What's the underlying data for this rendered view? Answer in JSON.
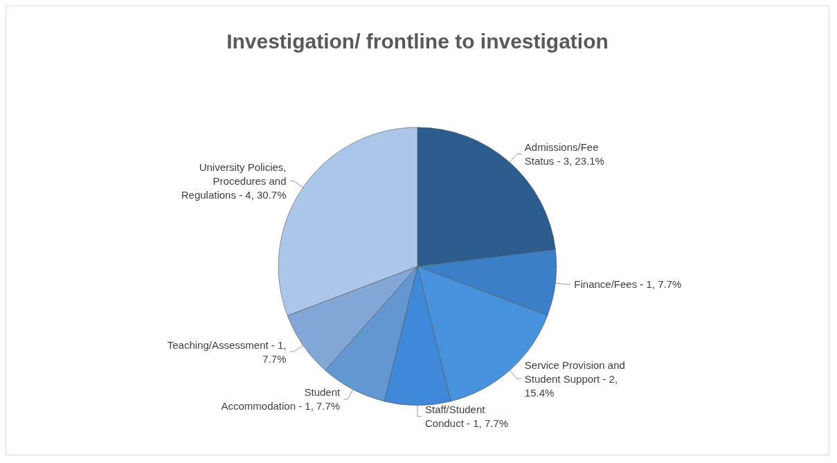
{
  "chart_data": {
    "type": "pie",
    "title": "Investigation/ frontline to investigation",
    "categories": [
      "Admissions/Fee Status",
      "Finance/Fees",
      "Service Provision and Student Support",
      "Staff/Student Conduct",
      "Student Accommodation",
      "Teaching/Assessment",
      "University Policies, Procedures and Regulations"
    ],
    "values": [
      3,
      1,
      2,
      1,
      1,
      1,
      4
    ],
    "value_labels": [
      "3, 23.1%",
      "1, 7.7%",
      "2, 15.4%",
      "1, 7.7%",
      "1, 7.7%",
      "1, 7.7%",
      "4, 30.7%"
    ],
    "colors": [
      "#2c5d8e",
      "#3b7fc9",
      "#4891dc",
      "#3f87d8",
      "#6297d2",
      "#82a7d6",
      "#abc6e8"
    ],
    "legend": false
  }
}
